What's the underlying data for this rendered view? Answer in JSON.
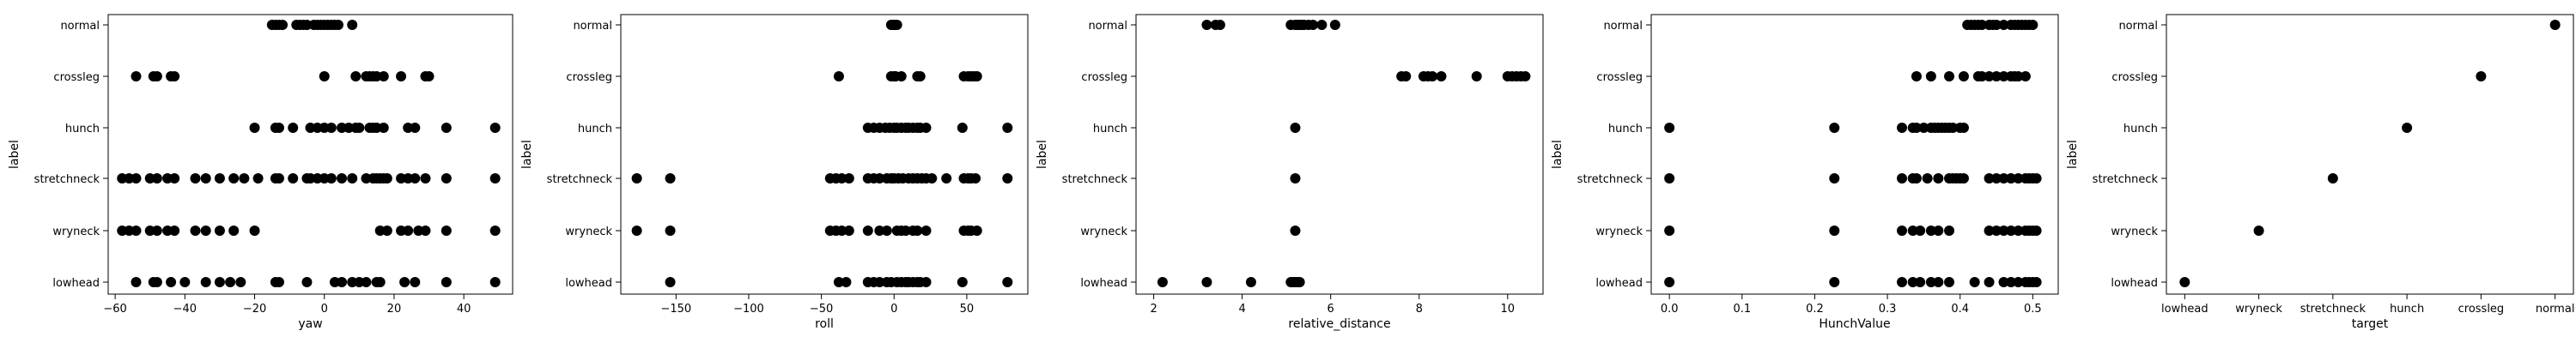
{
  "chart_data": [
    {
      "type": "scatter",
      "xlabel": "yaw",
      "ylabel": "label",
      "xlim": [
        -62,
        54
      ],
      "xticks": [
        -60,
        -40,
        -20,
        0,
        20,
        40
      ],
      "categories": [
        "lowhead",
        "wryneck",
        "stretchneck",
        "hunch",
        "crossleg",
        "normal"
      ],
      "grid": false,
      "points": {
        "normal": [
          -15,
          -14,
          -13,
          -12,
          -8,
          -7,
          -6,
          -5,
          -3,
          -2,
          -1,
          0,
          1,
          2,
          3,
          4,
          8
        ],
        "crossleg": [
          -54,
          -49,
          -48,
          -44,
          -43,
          0,
          9,
          12,
          13,
          14,
          15,
          17,
          22,
          29,
          30
        ],
        "hunch": [
          -20,
          -14,
          -13,
          -9,
          -4,
          -2,
          0,
          2,
          5,
          7,
          9,
          10,
          13,
          14,
          15,
          17,
          24,
          26,
          35,
          49
        ],
        "stretchneck": [
          -58,
          -56,
          -54,
          -50,
          -48,
          -45,
          -43,
          -37,
          -34,
          -30,
          -26,
          -23,
          -19,
          -14,
          -13,
          -9,
          -5,
          -4,
          -2,
          0,
          2,
          5,
          8,
          12,
          14,
          15,
          16,
          17,
          18,
          22,
          24,
          26,
          29,
          35,
          49
        ],
        "wryneck": [
          -58,
          -56,
          -54,
          -50,
          -48,
          -45,
          -43,
          -37,
          -34,
          -30,
          -26,
          -20,
          16,
          18,
          22,
          24,
          27,
          29,
          35,
          49
        ],
        "lowhead": [
          -54,
          -49,
          -48,
          -44,
          -40,
          -34,
          -30,
          -27,
          -24,
          -14,
          -13,
          -5,
          3,
          5,
          8,
          10,
          12,
          15,
          16,
          23,
          26,
          35,
          49
        ]
      }
    },
    {
      "type": "scatter",
      "xlabel": "roll",
      "ylabel": "label",
      "xlim": [
        -188,
        92
      ],
      "xticks": [
        -150,
        -100,
        -50,
        0,
        50
      ],
      "categories": [
        "lowhead",
        "wryneck",
        "stretchneck",
        "hunch",
        "crossleg",
        "normal"
      ],
      "grid": false,
      "points": {
        "normal": [
          -2,
          -1,
          0,
          1,
          2
        ],
        "crossleg": [
          -38,
          -2,
          0,
          1,
          5,
          16,
          18,
          48,
          51,
          53,
          55,
          57
        ],
        "hunch": [
          -18,
          -14,
          -10,
          -6,
          -3,
          0,
          2,
          5,
          8,
          10,
          13,
          16,
          18,
          22,
          47,
          78
        ],
        "stretchneck": [
          -177,
          -154,
          -44,
          -40,
          -36,
          -31,
          -18,
          -14,
          -10,
          -5,
          -2,
          0,
          3,
          6,
          10,
          13,
          16,
          19,
          22,
          26,
          36,
          48,
          51,
          53,
          56,
          78
        ],
        "wryneck": [
          -177,
          -154,
          -44,
          -40,
          -36,
          -31,
          -18,
          -10,
          -5,
          2,
          5,
          8,
          13,
          16,
          22,
          48,
          51,
          53,
          57
        ],
        "lowhead": [
          -154,
          -38,
          -33,
          -18,
          -14,
          -10,
          -5,
          -2,
          2,
          5,
          8,
          10,
          13,
          16,
          18,
          22,
          47,
          78
        ]
      }
    },
    {
      "type": "scatter",
      "xlabel": "relative_distance",
      "ylabel": "label",
      "xlim": [
        1.6,
        10.8
      ],
      "xticks": [
        2,
        4,
        6,
        8,
        10
      ],
      "categories": [
        "lowhead",
        "wryneck",
        "stretchneck",
        "hunch",
        "crossleg",
        "normal"
      ],
      "grid": false,
      "points": {
        "normal": [
          3.2,
          3.4,
          3.5,
          5.1,
          5.2,
          5.25,
          5.3,
          5.35,
          5.4,
          5.5,
          5.6,
          5.8,
          6.1
        ],
        "crossleg": [
          7.6,
          7.7,
          8.1,
          8.2,
          8.3,
          8.5,
          9.3,
          10.0,
          10.1,
          10.2,
          10.3,
          10.4
        ],
        "hunch": [
          5.2
        ],
        "stretchneck": [
          5.2
        ],
        "wryneck": [
          5.2
        ],
        "lowhead": [
          2.2,
          3.2,
          4.2,
          5.1,
          5.15,
          5.2,
          5.25,
          5.3
        ]
      }
    },
    {
      "type": "scatter",
      "xlabel": "HunchValue",
      "ylabel": "label",
      "xlim": [
        -0.025,
        0.535
      ],
      "xticks": [
        0.0,
        0.1,
        0.2,
        0.3,
        0.4,
        0.5
      ],
      "categories": [
        "lowhead",
        "wryneck",
        "stretchneck",
        "hunch",
        "crossleg",
        "normal"
      ],
      "grid": false,
      "points": {
        "normal": [
          0.41,
          0.415,
          0.42,
          0.425,
          0.43,
          0.44,
          0.445,
          0.45,
          0.46,
          0.47,
          0.475,
          0.48,
          0.485,
          0.49,
          0.495,
          0.5
        ],
        "crossleg": [
          0.34,
          0.36,
          0.385,
          0.405,
          0.425,
          0.43,
          0.44,
          0.45,
          0.46,
          0.47,
          0.475,
          0.48,
          0.49
        ],
        "hunch": [
          0.0,
          0.227,
          0.32,
          0.335,
          0.34,
          0.35,
          0.36,
          0.365,
          0.37,
          0.375,
          0.38,
          0.385,
          0.39,
          0.4,
          0.405
        ],
        "stretchneck": [
          0.0,
          0.227,
          0.32,
          0.335,
          0.34,
          0.355,
          0.37,
          0.385,
          0.39,
          0.395,
          0.4,
          0.405,
          0.44,
          0.45,
          0.46,
          0.47,
          0.48,
          0.49,
          0.495,
          0.5,
          0.505
        ],
        "wryneck": [
          0.0,
          0.227,
          0.32,
          0.335,
          0.345,
          0.36,
          0.37,
          0.385,
          0.44,
          0.45,
          0.46,
          0.47,
          0.48,
          0.49,
          0.495,
          0.5,
          0.505
        ],
        "lowhead": [
          0.0,
          0.227,
          0.32,
          0.335,
          0.345,
          0.36,
          0.37,
          0.385,
          0.42,
          0.44,
          0.46,
          0.47,
          0.48,
          0.49,
          0.495,
          0.5,
          0.505
        ]
      }
    },
    {
      "type": "scatter",
      "xlabel": "target",
      "ylabel": "label",
      "x_categories": [
        "lowhead",
        "wryneck",
        "stretchneck",
        "hunch",
        "crossleg",
        "normal"
      ],
      "categories": [
        "lowhead",
        "wryneck",
        "stretchneck",
        "hunch",
        "crossleg",
        "normal"
      ],
      "grid": false,
      "points": {
        "normal": [
          "normal"
        ],
        "crossleg": [
          "crossleg"
        ],
        "hunch": [
          "hunch"
        ],
        "stretchneck": [
          "stretchneck"
        ],
        "wryneck": [
          "wryneck"
        ],
        "lowhead": [
          "lowhead"
        ]
      }
    }
  ]
}
